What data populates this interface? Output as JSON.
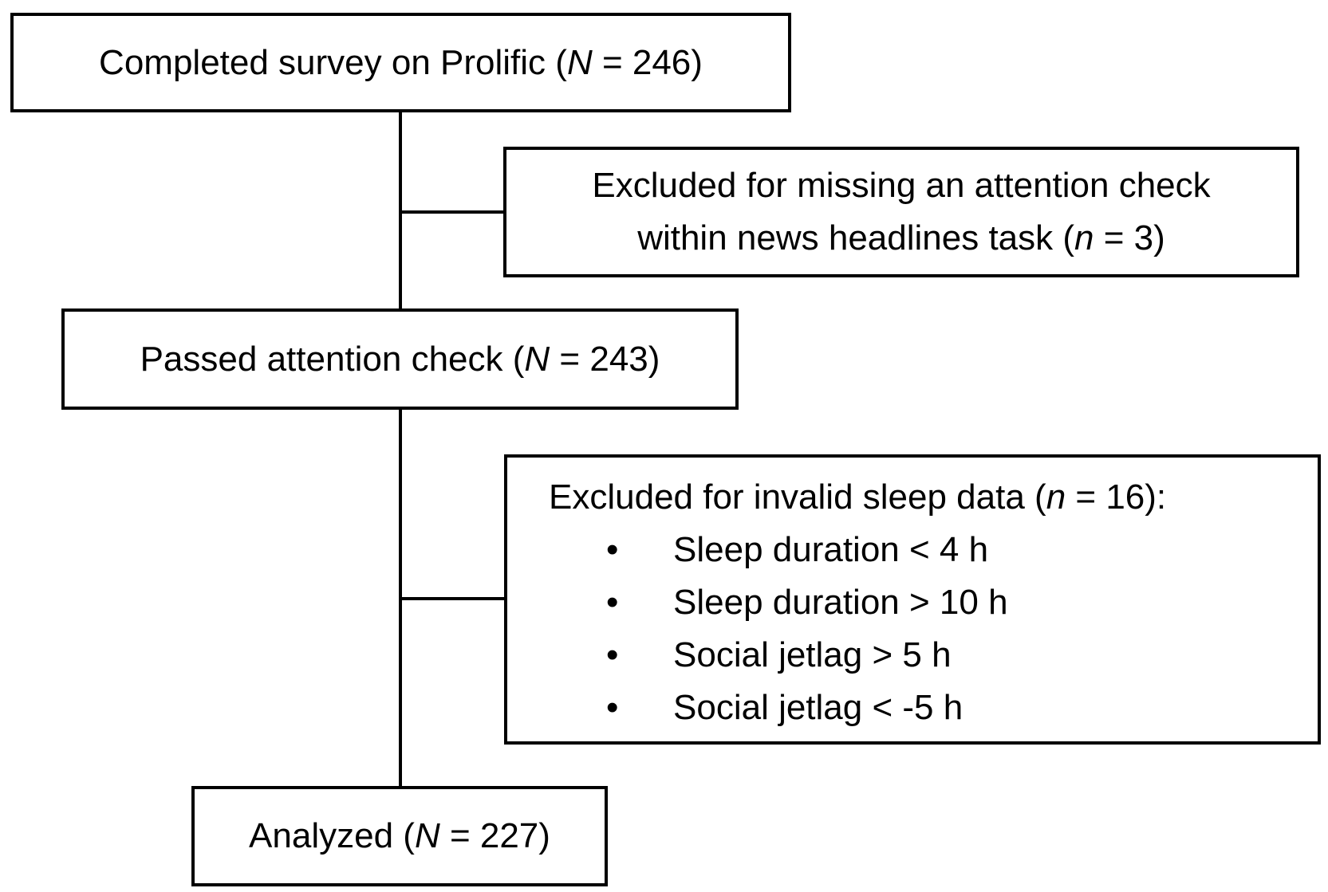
{
  "boxes": {
    "completed": {
      "prefix": "Completed survey on Prolific (",
      "stat": "N",
      "suffix": " = 246)"
    },
    "excluded_attention": {
      "line1": "Excluded for missing an attention check",
      "line2_prefix": "within news headlines task (",
      "stat": "n",
      "line2_suffix": " = 3)"
    },
    "passed": {
      "prefix": "Passed attention check (",
      "stat": "N",
      "suffix": " = 243)"
    },
    "excluded_sleep": {
      "heading_prefix": "Excluded for invalid sleep data (",
      "stat": "n",
      "heading_suffix": " = 16):",
      "bullet": "•",
      "items": [
        "Sleep duration < 4 h",
        "Sleep duration > 10 h",
        "Social jetlag > 5 h",
        "Social jetlag < -5 h"
      ]
    },
    "analyzed": {
      "prefix": "Analyzed (",
      "stat": "N",
      "suffix": " = 227)"
    }
  }
}
